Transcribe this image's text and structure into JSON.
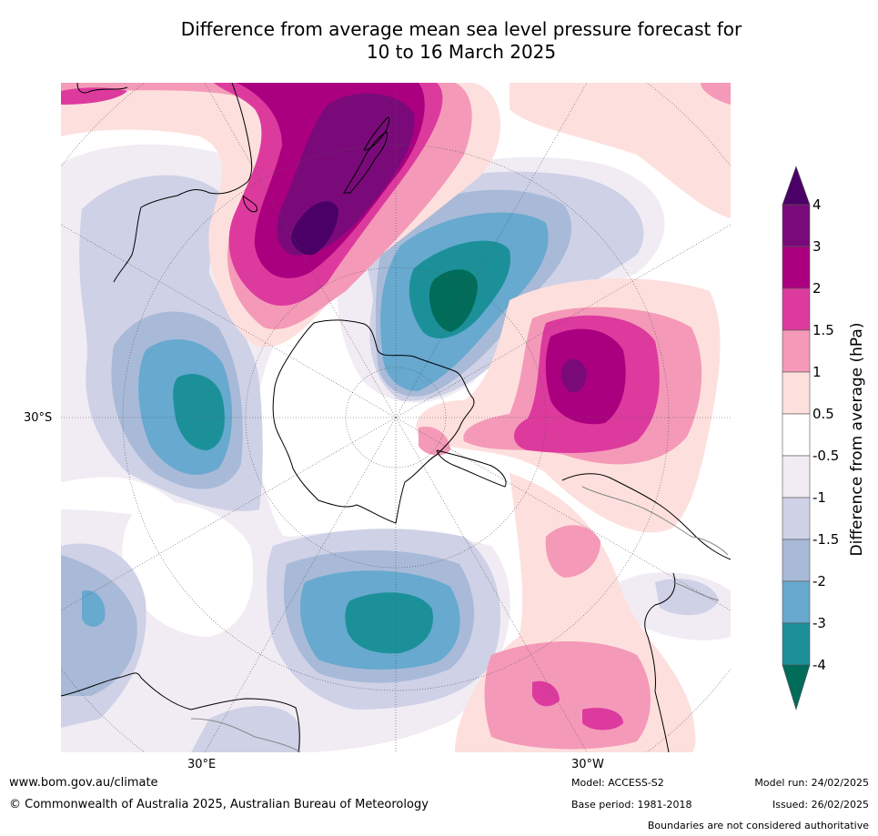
{
  "title_line1": "Difference from average mean sea level pressure forecast for",
  "title_line2": "10 to 16 March 2025",
  "axis_labels": {
    "left_30s": "30°S",
    "bottom_30e": "30°E",
    "bottom_30w": "30°W"
  },
  "colorbar": {
    "title": "Difference from average (hPa)",
    "ticks": [
      "4",
      "3",
      "2",
      "1.5",
      "1",
      "0.5",
      "-0.5",
      "-1",
      "-1.5",
      "-2",
      "-3",
      "-4"
    ],
    "colors": {
      "above_4": "#4a0066",
      "3_to_4": "#7a0a7a",
      "2_to_3": "#aa0080",
      "1.5_to_2": "#dd3a9e",
      "1_to_1.5": "#f49ab8",
      "0.5_to_1": "#fde0de",
      "neutral": "#ffffff",
      "-1_to_-0.5": "#f1ecf4",
      "-1.5_to_-1": "#cfd1e6",
      "-2_to_-1.5": "#a8bad8",
      "-3_to_-2": "#67a9cf",
      "-4_to_-3": "#1c9099",
      "below_-4": "#016c59"
    }
  },
  "footer": {
    "website": "www.bom.gov.au/climate",
    "copyright": "© Commonwealth of Australia 2025, Australian Bureau of Meteorology",
    "model": "Model: ACCESS-S2",
    "base_period": "Base period: 1981-2018",
    "model_run": "Model run: 24/02/2025",
    "issued": "Issued: 26/02/2025",
    "disclaimer": "Boundaries are not considered authoritative"
  }
}
